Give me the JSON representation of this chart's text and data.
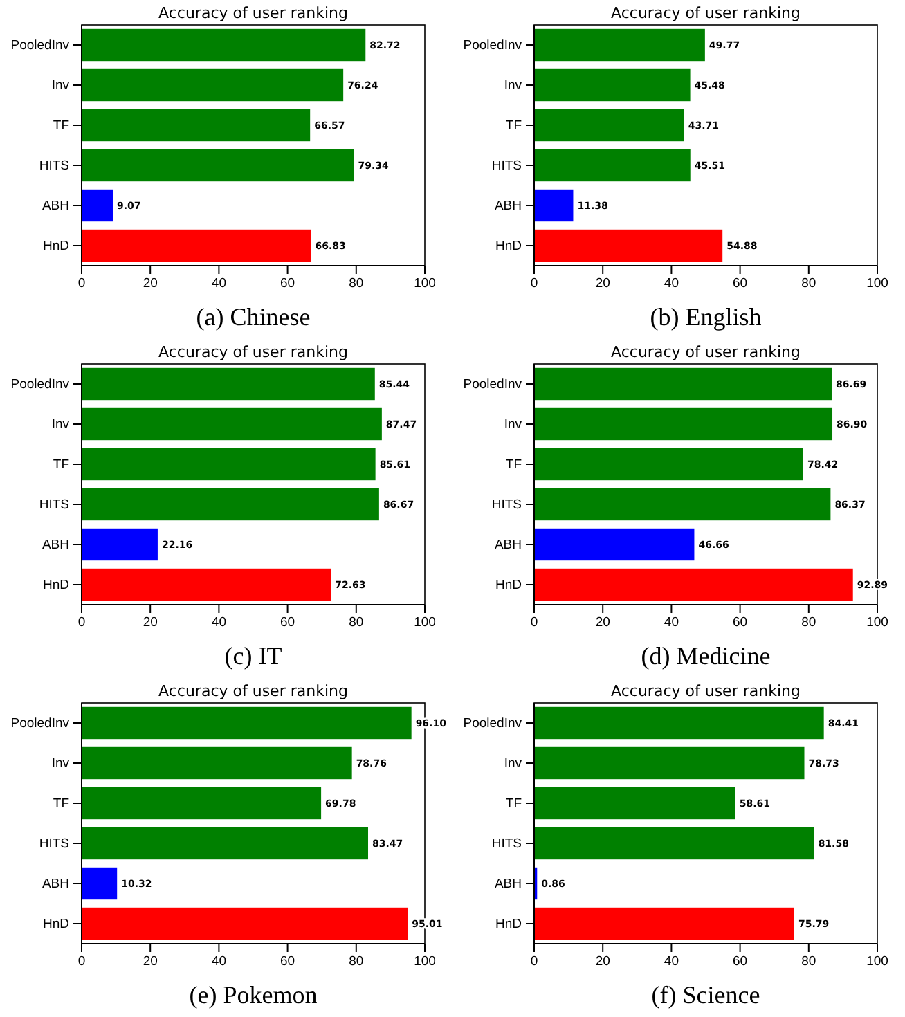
{
  "chart_data": [
    {
      "type": "bar",
      "orientation": "horizontal",
      "title": "Accuracy of user ranking",
      "xlabel": "(a) Chinese",
      "categories": [
        "PooledInv",
        "Inv",
        "TF",
        "HITS",
        "ABH",
        "HnD"
      ],
      "values": [
        82.72,
        76.24,
        66.57,
        79.34,
        9.07,
        66.83
      ],
      "value_labels": [
        "82.72",
        "76.24",
        "66.57",
        "79.34",
        "9.07",
        "66.83"
      ],
      "colors": [
        "#008000",
        "#008000",
        "#008000",
        "#008000",
        "#0000ff",
        "#ff0000"
      ],
      "xlim": [
        0,
        100
      ],
      "xticks": [
        0,
        20,
        40,
        60,
        80,
        100
      ]
    },
    {
      "type": "bar",
      "orientation": "horizontal",
      "title": "Accuracy of user ranking",
      "xlabel": "(b) English",
      "categories": [
        "PooledInv",
        "Inv",
        "TF",
        "HITS",
        "ABH",
        "HnD"
      ],
      "values": [
        49.77,
        45.48,
        43.71,
        45.51,
        11.38,
        54.88
      ],
      "value_labels": [
        "49.77",
        "45.48",
        "43.71",
        "45.51",
        "11.38",
        "54.88"
      ],
      "colors": [
        "#008000",
        "#008000",
        "#008000",
        "#008000",
        "#0000ff",
        "#ff0000"
      ],
      "xlim": [
        0,
        100
      ],
      "xticks": [
        0,
        20,
        40,
        60,
        80,
        100
      ]
    },
    {
      "type": "bar",
      "orientation": "horizontal",
      "title": "Accuracy of user ranking",
      "xlabel": "(c) IT",
      "categories": [
        "PooledInv",
        "Inv",
        "TF",
        "HITS",
        "ABH",
        "HnD"
      ],
      "values": [
        85.44,
        87.47,
        85.61,
        86.67,
        22.16,
        72.63
      ],
      "value_labels": [
        "85.44",
        "87.47",
        "85.61",
        "86.67",
        "22.16",
        "72.63"
      ],
      "colors": [
        "#008000",
        "#008000",
        "#008000",
        "#008000",
        "#0000ff",
        "#ff0000"
      ],
      "xlim": [
        0,
        100
      ],
      "xticks": [
        0,
        20,
        40,
        60,
        80,
        100
      ]
    },
    {
      "type": "bar",
      "orientation": "horizontal",
      "title": "Accuracy of user ranking",
      "xlabel": "(d) Medicine",
      "categories": [
        "PooledInv",
        "Inv",
        "TF",
        "HITS",
        "ABH",
        "HnD"
      ],
      "values": [
        86.69,
        86.9,
        78.42,
        86.37,
        46.66,
        92.89
      ],
      "value_labels": [
        "86.69",
        "86.90",
        "78.42",
        "86.37",
        "46.66",
        "92.89"
      ],
      "colors": [
        "#008000",
        "#008000",
        "#008000",
        "#008000",
        "#0000ff",
        "#ff0000"
      ],
      "xlim": [
        0,
        100
      ],
      "xticks": [
        0,
        20,
        40,
        60,
        80,
        100
      ]
    },
    {
      "type": "bar",
      "orientation": "horizontal",
      "title": "Accuracy of user ranking",
      "xlabel": "(e) Pokemon",
      "categories": [
        "PooledInv",
        "Inv",
        "TF",
        "HITS",
        "ABH",
        "HnD"
      ],
      "values": [
        96.1,
        78.76,
        69.78,
        83.47,
        10.32,
        95.01
      ],
      "value_labels": [
        "96.10",
        "78.76",
        "69.78",
        "83.47",
        "10.32",
        "95.01"
      ],
      "colors": [
        "#008000",
        "#008000",
        "#008000",
        "#008000",
        "#0000ff",
        "#ff0000"
      ],
      "xlim": [
        0,
        100
      ],
      "xticks": [
        0,
        20,
        40,
        60,
        80,
        100
      ]
    },
    {
      "type": "bar",
      "orientation": "horizontal",
      "title": "Accuracy of user ranking",
      "xlabel": "(f) Science",
      "categories": [
        "PooledInv",
        "Inv",
        "TF",
        "HITS",
        "ABH",
        "HnD"
      ],
      "values": [
        84.41,
        78.73,
        58.61,
        81.58,
        0.86,
        75.79
      ],
      "value_labels": [
        "84.41",
        "78.73",
        "58.61",
        "81.58",
        "0.86",
        "75.79"
      ],
      "colors": [
        "#008000",
        "#008000",
        "#008000",
        "#008000",
        "#0000ff",
        "#ff0000"
      ],
      "xlim": [
        0,
        100
      ],
      "xticks": [
        0,
        20,
        40,
        60,
        80,
        100
      ]
    }
  ]
}
